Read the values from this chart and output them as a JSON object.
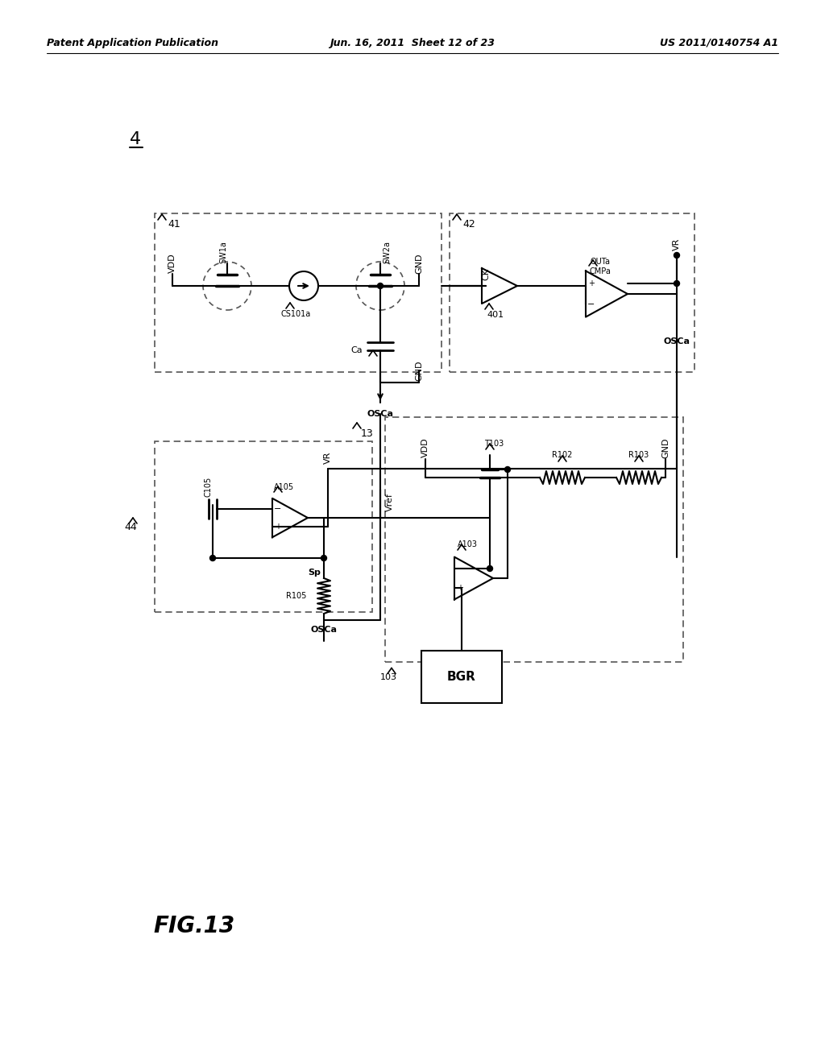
{
  "bg_color": "#ffffff",
  "line_color": "#000000",
  "dash_color": "#555555",
  "header_left": "Patent Application Publication",
  "header_mid": "Jun. 16, 2011  Sheet 12 of 23",
  "header_right": "US 2011/0140754 A1",
  "fig_label": "FIG.13",
  "main_label": "4"
}
